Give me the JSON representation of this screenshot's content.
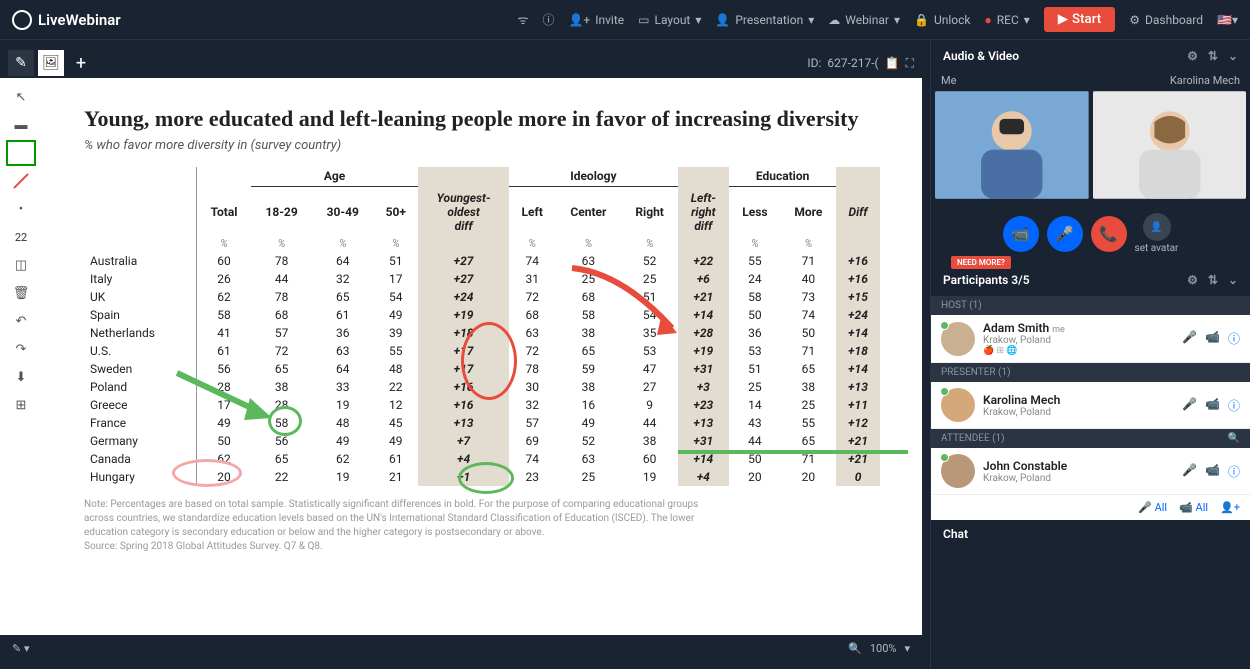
{
  "app": {
    "name": "LiveWebinar"
  },
  "topbar": {
    "invite": "Invite",
    "layout": "Layout",
    "presentation": "Presentation",
    "webinar": "Webinar",
    "unlock": "Unlock",
    "rec": "REC",
    "start": "Start",
    "dashboard": "Dashboard"
  },
  "room": {
    "id_label": "ID:",
    "id": "627-217-(",
    "zoom": "100%"
  },
  "toolbar": {
    "num": "22"
  },
  "slide": {
    "title": "Young, more educated and left-leaning people more in favor of increasing diversity",
    "subtitle": "% who favor more diversity in (survey country)",
    "groups": {
      "age": "Age",
      "ideology": "Ideology",
      "education": "Education"
    },
    "cols": {
      "total": "Total",
      "c18": "18-29",
      "c30": "30-49",
      "c50": "50+",
      "ydiff_1": "Youngest-",
      "ydiff_2": "oldest",
      "ydiff_3": "diff",
      "left": "Left",
      "center": "Center",
      "right": "Right",
      "lrdiff_1": "Left-",
      "lrdiff_2": "right",
      "lrdiff_3": "diff",
      "less": "Less",
      "more": "More",
      "ediff": "Diff",
      "pct": "%"
    },
    "rows": [
      {
        "c": "Australia",
        "t": "60",
        "a1": "78",
        "a2": "64",
        "a3": "51",
        "yd": "+27",
        "l": "74",
        "ce": "63",
        "r": "52",
        "ld": "+22",
        "le": "55",
        "mo": "71",
        "ed": "+16"
      },
      {
        "c": "Italy",
        "t": "26",
        "a1": "44",
        "a2": "32",
        "a3": "17",
        "yd": "+27",
        "l": "31",
        "ce": "25",
        "r": "25",
        "ld": "+6",
        "le": "24",
        "mo": "40",
        "ed": "+16"
      },
      {
        "c": "UK",
        "t": "62",
        "a1": "78",
        "a2": "65",
        "a3": "54",
        "yd": "+24",
        "l": "72",
        "ce": "68",
        "r": "51",
        "ld": "+21",
        "le": "58",
        "mo": "73",
        "ed": "+15"
      },
      {
        "c": "Spain",
        "t": "58",
        "a1": "68",
        "a2": "61",
        "a3": "49",
        "yd": "+19",
        "l": "68",
        "ce": "58",
        "r": "54",
        "ld": "+14",
        "le": "50",
        "mo": "74",
        "ed": "+24"
      },
      {
        "c": "Netherlands",
        "t": "41",
        "a1": "57",
        "a2": "36",
        "a3": "39",
        "yd": "+18",
        "l": "63",
        "ce": "38",
        "r": "35",
        "ld": "+28",
        "le": "36",
        "mo": "50",
        "ed": "+14"
      },
      {
        "c": "U.S.",
        "t": "61",
        "a1": "72",
        "a2": "63",
        "a3": "55",
        "yd": "+17",
        "l": "72",
        "ce": "65",
        "r": "53",
        "ld": "+19",
        "le": "53",
        "mo": "71",
        "ed": "+18"
      },
      {
        "c": "Sweden",
        "t": "56",
        "a1": "65",
        "a2": "64",
        "a3": "48",
        "yd": "+17",
        "l": "78",
        "ce": "59",
        "r": "47",
        "ld": "+31",
        "le": "51",
        "mo": "65",
        "ed": "+14"
      },
      {
        "c": "Poland",
        "t": "28",
        "a1": "38",
        "a2": "33",
        "a3": "22",
        "yd": "+16",
        "l": "30",
        "ce": "38",
        "r": "27",
        "ld": "+3",
        "le": "25",
        "mo": "38",
        "ed": "+13"
      },
      {
        "c": "Greece",
        "t": "17",
        "a1": "28",
        "a2": "19",
        "a3": "12",
        "yd": "+16",
        "l": "32",
        "ce": "16",
        "r": "9",
        "ld": "+23",
        "le": "14",
        "mo": "25",
        "ed": "+11"
      },
      {
        "c": "France",
        "t": "49",
        "a1": "58",
        "a2": "48",
        "a3": "45",
        "yd": "+13",
        "l": "57",
        "ce": "49",
        "r": "44",
        "ld": "+13",
        "le": "43",
        "mo": "55",
        "ed": "+12"
      },
      {
        "c": "Germany",
        "t": "50",
        "a1": "56",
        "a2": "49",
        "a3": "49",
        "yd": "+7",
        "l": "69",
        "ce": "52",
        "r": "38",
        "ld": "+31",
        "le": "44",
        "mo": "65",
        "ed": "+21"
      },
      {
        "c": "Canada",
        "t": "62",
        "a1": "65",
        "a2": "62",
        "a3": "61",
        "yd": "+4",
        "l": "74",
        "ce": "63",
        "r": "60",
        "ld": "+14",
        "le": "50",
        "mo": "71",
        "ed": "+21"
      },
      {
        "c": "Hungary",
        "t": "20",
        "a1": "22",
        "a2": "19",
        "a3": "21",
        "yd": "+1",
        "l": "23",
        "ce": "25",
        "r": "19",
        "ld": "+4",
        "le": "20",
        "mo": "20",
        "ed": "0"
      }
    ],
    "note1": "Note: Percentages are based on total sample. Statistically significant differences in bold. For the purpose of comparing educational groups",
    "note2": "across countries, we standardize education levels based on the UN's International Standard Classification of Education (ISCED). The lower",
    "note3": "education category is secondary education or below and the higher category is postsecondary or above.",
    "note4": "Source: Spring 2018 Global Attitudes Survey. Q7 & Q8."
  },
  "av": {
    "title": "Audio & Video",
    "me": "Me",
    "other": "Karolina Mech",
    "set_avatar": "set avatar"
  },
  "participants": {
    "title": "Participants 3/5",
    "need_more": "NEED MORE?",
    "host_label": "HOST (1)",
    "presenter_label": "PRESENTER (1)",
    "attendee_label": "ATTENDEE (1)",
    "host": {
      "name": "Adam Smith",
      "me": "me",
      "loc": "Krakow, Poland"
    },
    "presenter": {
      "name": "Karolina Mech",
      "loc": "Krakow, Poland"
    },
    "attendee": {
      "name": "John Constable",
      "loc": "Krakow, Poland"
    },
    "all": "All"
  },
  "chat": {
    "title": "Chat"
  },
  "colors": {
    "bg": "#1a2332",
    "accent_red": "#e74c3c",
    "accent_blue": "#0066ff",
    "accent_green": "#5cb85c",
    "highlight": "#e3dcd0",
    "annot_red": "#e74c3c",
    "annot_green": "#5cb85c",
    "annot_pink": "#f5a6a6"
  }
}
